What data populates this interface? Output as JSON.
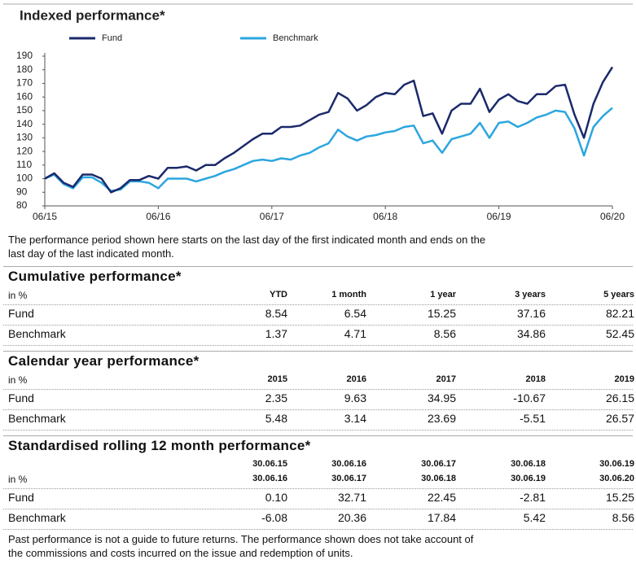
{
  "chart_data": {
    "type": "line",
    "title": "Indexed performance*",
    "categories": [
      "06/15",
      null,
      null,
      null,
      null,
      null,
      null,
      null,
      null,
      null,
      null,
      null,
      "06/16",
      null,
      null,
      null,
      null,
      null,
      null,
      null,
      null,
      null,
      null,
      null,
      "06/17",
      null,
      null,
      null,
      null,
      null,
      null,
      null,
      null,
      null,
      null,
      null,
      "06/18",
      null,
      null,
      null,
      null,
      null,
      null,
      null,
      null,
      null,
      null,
      null,
      "06/19",
      null,
      null,
      null,
      null,
      null,
      null,
      null,
      null,
      null,
      null,
      null,
      "06/20"
    ],
    "series": [
      {
        "name": "Fund",
        "color": "#1b2a6b",
        "values": [
          100,
          104,
          97,
          94,
          103,
          103,
          100,
          90,
          93,
          99,
          99,
          102,
          100,
          108,
          108,
          109,
          106,
          110,
          110,
          115,
          119,
          124,
          129,
          133,
          133,
          138,
          138,
          139,
          143,
          147,
          149,
          163,
          159,
          150,
          154,
          160,
          163,
          162,
          169,
          172,
          146,
          148,
          133,
          150,
          155,
          155,
          166,
          149,
          158,
          162,
          157,
          155,
          162,
          162,
          168,
          169,
          147,
          130,
          155,
          171,
          182
        ]
      },
      {
        "name": "Benchmark",
        "color": "#2ba6e0",
        "values": [
          100,
          103,
          96,
          93,
          101,
          101,
          97,
          91,
          92,
          98,
          98,
          97,
          93,
          100,
          100,
          100,
          98,
          100,
          102,
          105,
          107,
          110,
          113,
          114,
          113,
          115,
          114,
          117,
          119,
          123,
          126,
          136,
          131,
          128,
          131,
          132,
          134,
          135,
          138,
          139,
          126,
          128,
          119,
          129,
          131,
          133,
          141,
          130,
          141,
          142,
          138,
          141,
          145,
          147,
          150,
          149,
          137,
          117,
          138,
          146,
          152
        ]
      }
    ],
    "ylim": [
      80,
      190
    ],
    "yticks": [
      80,
      90,
      100,
      110,
      120,
      130,
      140,
      150,
      160,
      170,
      180,
      190
    ],
    "grid": false
  },
  "note": [
    "The performance period shown here starts on the last day of the first indicated month and ends on the",
    "last day of the last indicated month."
  ],
  "tables": [
    {
      "title": "Cumulative performance*",
      "unit": "in %",
      "columns": [
        "YTD",
        "1 month",
        "1 year",
        "3 years",
        "5 years"
      ],
      "rows": [
        {
          "label": "Fund",
          "values": [
            "8.54",
            "6.54",
            "15.25",
            "37.16",
            "82.21"
          ]
        },
        {
          "label": "Benchmark",
          "values": [
            "1.37",
            "4.71",
            "8.56",
            "34.86",
            "52.45"
          ]
        }
      ]
    },
    {
      "title": "Calendar year performance*",
      "unit": "in %",
      "columns": [
        "2015",
        "2016",
        "2017",
        "2018",
        "2019"
      ],
      "rows": [
        {
          "label": "Fund",
          "values": [
            "2.35",
            "9.63",
            "34.95",
            "-10.67",
            "26.15"
          ]
        },
        {
          "label": "Benchmark",
          "values": [
            "5.48",
            "3.14",
            "23.69",
            "-5.51",
            "26.57"
          ]
        }
      ]
    },
    {
      "title": "Standardised rolling 12 month performance*",
      "unit": "in %",
      "columns": [
        [
          "30.06.15",
          "30.06.16"
        ],
        [
          "30.06.16",
          "30.06.17"
        ],
        [
          "30.06.17",
          "30.06.18"
        ],
        [
          "30.06.18",
          "30.06.19"
        ],
        [
          "30.06.19",
          "30.06.20"
        ]
      ],
      "rows": [
        {
          "label": "Fund",
          "values": [
            "0.10",
            "32.71",
            "22.45",
            "-2.81",
            "15.25"
          ]
        },
        {
          "label": "Benchmark",
          "values": [
            "-6.08",
            "20.36",
            "17.84",
            "5.42",
            "8.56"
          ]
        }
      ]
    }
  ],
  "footer": [
    "Past performance is not a guide to future returns. The performance shown does not take account of",
    "the commissions and costs incurred on the issue and redemption of units."
  ]
}
